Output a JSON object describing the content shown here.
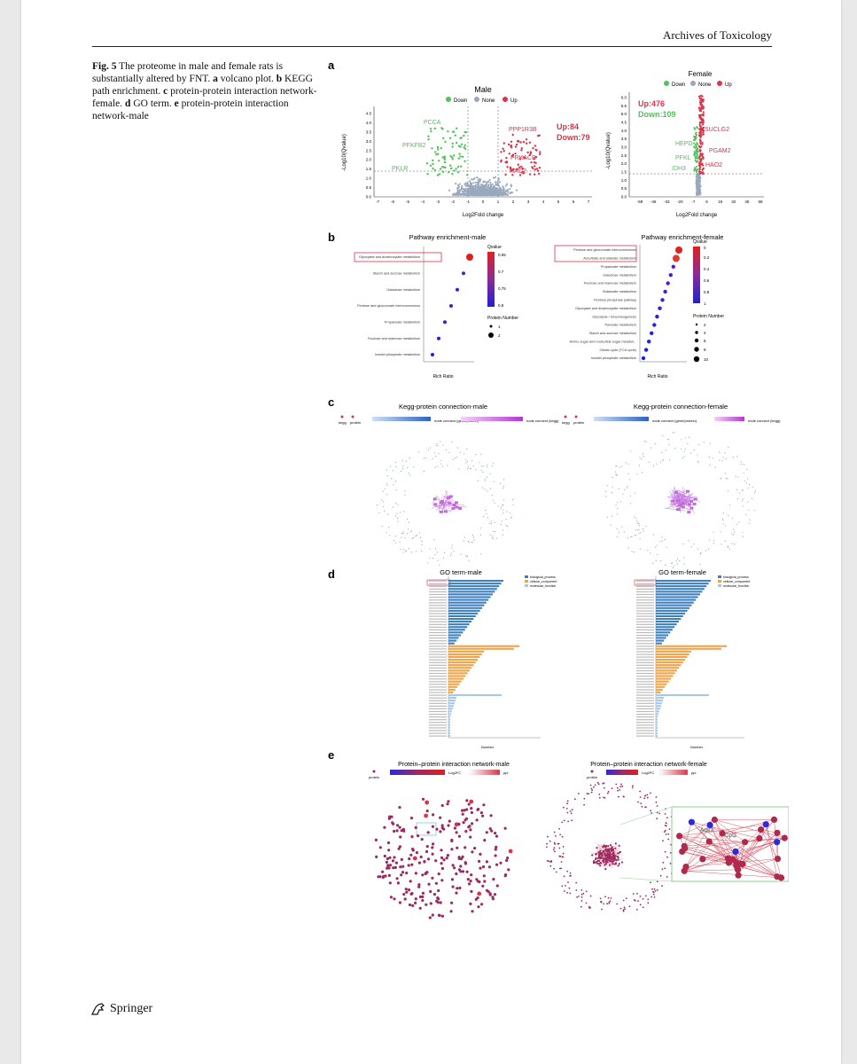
{
  "header": {
    "journal": "Archives of Toxicology"
  },
  "caption": {
    "fig_label": "Fig. 5",
    "text_1": " The proteome in male and female rats is substantially altered by FNT. ",
    "a": "a",
    "a_text": " volcano plot. ",
    "b": "b",
    "b_text": " KEGG path enrichment. ",
    "c": "c",
    "c_text": " protein-protein interaction network-female. ",
    "d": "d",
    "d_text": " GO term. ",
    "e": "e",
    "e_text": " protein-protein interaction network-male"
  },
  "panels": {
    "a": {
      "label": "a",
      "legend": [
        "Down",
        "None",
        "Up"
      ],
      "male": {
        "title": "Male",
        "ylabel": "-Log10(Qvalue)",
        "xlabel": "Log2Fold change",
        "yticks": [
          "0.0",
          "0.5",
          "1.0",
          "1.5",
          "2.0",
          "2.5",
          "3.0",
          "3.5",
          "4.0",
          "4.5"
        ],
        "xticks": [
          "-7",
          "-6",
          "-5",
          "-4",
          "-3",
          "-2",
          "-1",
          "0",
          "1",
          "2",
          "3",
          "4",
          "5",
          "6",
          "7"
        ],
        "up_text": "Up:84",
        "down_text": "Down:79",
        "gene_labels": [
          "PCCA",
          "PFKFB2",
          "PKLR",
          "PPP1R3B",
          "PRKACB",
          "HAO2"
        ]
      },
      "female": {
        "title": "Female",
        "ylabel": "-Log10(Qvalue)",
        "xlabel": "Log2Fold change",
        "yticks": [
          "0.0",
          "0.5",
          "1.0",
          "1.5",
          "2.0",
          "2.5",
          "3.0",
          "3.5",
          "4.0",
          "4.5",
          "5.0",
          "5.5",
          "6.0"
        ],
        "xticks": [
          "-59",
          "-46",
          "-33",
          "-20",
          "-7",
          "6",
          "19",
          "32",
          "45",
          "58"
        ],
        "up_text": "Up:476",
        "down_text": "Down:109",
        "gene_labels": [
          "SUCLG2",
          "HEPD",
          "PGAM2",
          "PFKL",
          "HAO2",
          "IDH3"
        ]
      }
    },
    "b": {
      "label": "b",
      "male": {
        "title": "Pathway enrichment-male",
        "xlabel": "Rich Ratio",
        "legend_q": "Qvalue",
        "legend_n": "Protein Number",
        "q_ticks": [
          "0.65",
          "0.7",
          "0.75",
          "0.8"
        ],
        "n_ticks": [
          "1",
          "2"
        ],
        "pathways": [
          "Glyoxylate and dicarboxylate metabolism",
          "Starch and sucrose metabolism",
          "Galactose metabolism",
          "Pentose and glucuronate interconversions",
          "Propanoate metabolism",
          "Fructose and mannose metabolism",
          "Inositol phosphate metabolism"
        ]
      },
      "female": {
        "title": "Pathway enrichment-female",
        "xlabel": "Rich Ratio",
        "legend_q": "Qvalue",
        "legend_n": "Protein Number",
        "q_ticks": [
          "0",
          "0.2",
          "0.4",
          "0.6",
          "0.8",
          "1"
        ],
        "n_ticks": [
          "2",
          "4",
          "6",
          "8",
          "10"
        ],
        "pathways": [
          "Pentose and glucuronate interconversions",
          "Ascorbate and aldarate metabolism",
          "Propanoate metabolism",
          "Galactose metabolism",
          "Fructose and mannose metabolism",
          "Butanoate metabolism",
          "Pentose phosphate pathway",
          "Glyoxylate and dicarboxylate metabolism",
          "Glycolysis / Gluconeogenesis",
          "Pyruvate metabolism",
          "Starch and sucrose metabolism",
          "Amino sugar and nucleotide sugar metabol...",
          "Citrate cycle (TCA cycle)",
          "Inositol phosphate metabolism"
        ]
      }
    },
    "c": {
      "label": "c",
      "male": {
        "title": "Kegg-protein connection-male",
        "legend_kegg": "kegg",
        "legend_protein": "protein",
        "legend_gene": "node connect (gene/protein)",
        "legend_keggconnect": "node connect (kegg)"
      },
      "female": {
        "title": "Kegg-protein connection-female",
        "legend_kegg": "kegg",
        "legend_protein": "protein",
        "legend_gene": "node connect (gene/protein)",
        "legend_keggconnect": "node connect (kegg)"
      }
    },
    "d": {
      "label": "d",
      "male": {
        "title": "GO term-male",
        "xlabel": "Number",
        "legend": [
          "biological_process",
          "cellular_component",
          "molecular_function"
        ]
      },
      "female": {
        "title": "GO term-female",
        "xlabel": "Number",
        "legend": [
          "biological_process",
          "cellular_component",
          "molecular_function"
        ]
      }
    },
    "e": {
      "label": "e",
      "male": {
        "title": "Protein–protein interaction network-male",
        "legend_protein": "protein",
        "legend_fc": "Log2FC",
        "legend_ppi": "ppi"
      },
      "female": {
        "title": "Protein–protein interaction network-female",
        "legend_protein": "protein",
        "legend_fc": "Log2FC",
        "legend_ppi": "ppi",
        "zoom_labels": [
          "Acsl2",
          "Gpt2"
        ]
      }
    }
  },
  "colors": {
    "down": "#4fc25a",
    "none": "#9aa8bd",
    "up": "#d8344a",
    "bp": "#3e7fc0",
    "cc": "#f0a347",
    "mf": "#a9c8e8",
    "node": "#9b2a63"
  },
  "footer": {
    "publisher": "Springer",
    "publisher_icon": "springer-horse-icon"
  }
}
